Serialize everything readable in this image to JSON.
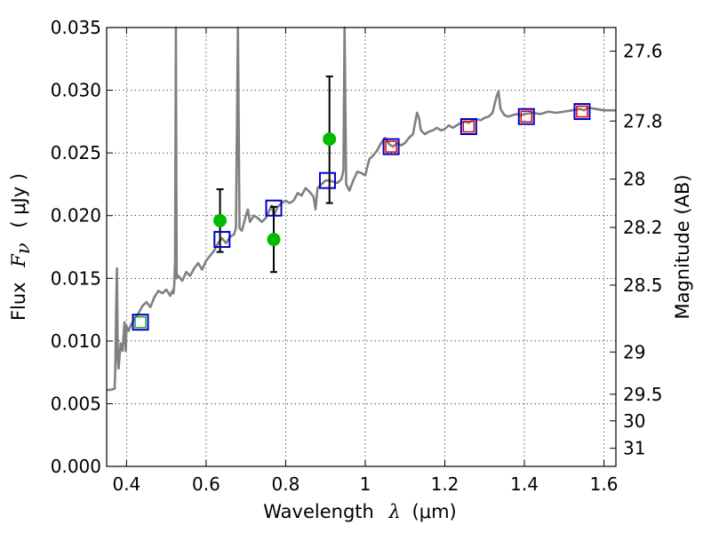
{
  "chart_data": {
    "type": "line",
    "xlabel": "Wavelength",
    "xlabel_symbol": "λ",
    "xlabel_unit": "(μm)",
    "ylabel": "Flux",
    "ylabel_symbol": "F",
    "ylabel_subscript": "ν",
    "ylabel_unit": "( μJy )",
    "y2label": "Magnitude (AB)",
    "xlim": [
      0.35,
      1.63
    ],
    "ylim": [
      0,
      0.035
    ],
    "grid": true,
    "xticks": [
      {
        "value": 0.4,
        "label": "0.4"
      },
      {
        "value": 0.6,
        "label": "0.6"
      },
      {
        "value": 0.8,
        "label": "0.8"
      },
      {
        "value": 1.0,
        "label": "1"
      },
      {
        "value": 1.2,
        "label": "1.2"
      },
      {
        "value": 1.4,
        "label": "1.4"
      },
      {
        "value": 1.6,
        "label": "1.6"
      }
    ],
    "yticks": [
      {
        "value": 0.0,
        "label": "0.000"
      },
      {
        "value": 0.005,
        "label": "0.005"
      },
      {
        "value": 0.01,
        "label": "0.010"
      },
      {
        "value": 0.015,
        "label": "0.015"
      },
      {
        "value": 0.02,
        "label": "0.020"
      },
      {
        "value": 0.025,
        "label": "0.025"
      },
      {
        "value": 0.03,
        "label": "0.030"
      },
      {
        "value": 0.035,
        "label": "0.035"
      }
    ],
    "y2ticks": [
      {
        "mag": 27.6,
        "label": "27.6"
      },
      {
        "mag": 27.8,
        "label": "27.8"
      },
      {
        "mag": 28.0,
        "label": "28"
      },
      {
        "mag": 28.2,
        "label": "28.2"
      },
      {
        "mag": 28.5,
        "label": "28.5"
      },
      {
        "mag": 29.0,
        "label": "29"
      },
      {
        "mag": 29.5,
        "label": "29.5"
      },
      {
        "mag": 30.0,
        "label": "30"
      },
      {
        "mag": 31.0,
        "label": "31"
      }
    ],
    "colors": {
      "model": "#808080",
      "observed": "#00bb00",
      "model_box": "#0000cc",
      "red_box": "#dd0000",
      "green_box": "#22aa22",
      "error": "#000000"
    },
    "model_spectrum": [
      [
        0.35,
        0.0061
      ],
      [
        0.36,
        0.0061
      ],
      [
        0.37,
        0.0062
      ],
      [
        0.372,
        0.008
      ],
      [
        0.374,
        0.0125
      ],
      [
        0.376,
        0.0158
      ],
      [
        0.378,
        0.0085
      ],
      [
        0.38,
        0.0078
      ],
      [
        0.385,
        0.0098
      ],
      [
        0.39,
        0.0092
      ],
      [
        0.392,
        0.0102
      ],
      [
        0.395,
        0.0115
      ],
      [
        0.398,
        0.0092
      ],
      [
        0.4,
        0.0112
      ],
      [
        0.405,
        0.0108
      ],
      [
        0.41,
        0.0112
      ],
      [
        0.42,
        0.0118
      ],
      [
        0.43,
        0.0122
      ],
      [
        0.44,
        0.0128
      ],
      [
        0.45,
        0.0131
      ],
      [
        0.46,
        0.0127
      ],
      [
        0.47,
        0.0135
      ],
      [
        0.48,
        0.014
      ],
      [
        0.49,
        0.0138
      ],
      [
        0.5,
        0.0141
      ],
      [
        0.51,
        0.0136
      ],
      [
        0.515,
        0.014
      ],
      [
        0.518,
        0.0138
      ],
      [
        0.52,
        0.0145
      ],
      [
        0.522,
        0.0165
      ],
      [
        0.524,
        0.035
      ],
      [
        0.526,
        0.015
      ],
      [
        0.53,
        0.0152
      ],
      [
        0.54,
        0.0148
      ],
      [
        0.55,
        0.0155
      ],
      [
        0.56,
        0.0152
      ],
      [
        0.57,
        0.0158
      ],
      [
        0.58,
        0.0162
      ],
      [
        0.59,
        0.0157
      ],
      [
        0.6,
        0.0164
      ],
      [
        0.61,
        0.0168
      ],
      [
        0.62,
        0.0172
      ],
      [
        0.63,
        0.0178
      ],
      [
        0.64,
        0.0182
      ],
      [
        0.65,
        0.0178
      ],
      [
        0.66,
        0.0183
      ],
      [
        0.67,
        0.0185
      ],
      [
        0.675,
        0.019
      ],
      [
        0.68,
        0.035
      ],
      [
        0.684,
        0.019
      ],
      [
        0.69,
        0.0188
      ],
      [
        0.7,
        0.02
      ],
      [
        0.705,
        0.0205
      ],
      [
        0.71,
        0.0195
      ],
      [
        0.72,
        0.02
      ],
      [
        0.73,
        0.0198
      ],
      [
        0.74,
        0.0195
      ],
      [
        0.75,
        0.0198
      ],
      [
        0.76,
        0.0205
      ],
      [
        0.765,
        0.0208
      ],
      [
        0.77,
        0.02
      ],
      [
        0.78,
        0.0207
      ],
      [
        0.79,
        0.021
      ],
      [
        0.8,
        0.0212
      ],
      [
        0.81,
        0.021
      ],
      [
        0.82,
        0.0212
      ],
      [
        0.83,
        0.0218
      ],
      [
        0.84,
        0.0216
      ],
      [
        0.85,
        0.0222
      ],
      [
        0.86,
        0.0219
      ],
      [
        0.87,
        0.0215
      ],
      [
        0.875,
        0.0205
      ],
      [
        0.88,
        0.0222
      ],
      [
        0.89,
        0.0225
      ],
      [
        0.9,
        0.0228
      ],
      [
        0.91,
        0.0228
      ],
      [
        0.92,
        0.0227
      ],
      [
        0.93,
        0.0226
      ],
      [
        0.94,
        0.0229
      ],
      [
        0.945,
        0.0236
      ],
      [
        0.948,
        0.035
      ],
      [
        0.952,
        0.0225
      ],
      [
        0.96,
        0.022
      ],
      [
        0.97,
        0.0228
      ],
      [
        0.98,
        0.0235
      ],
      [
        0.99,
        0.0234
      ],
      [
        1.0,
        0.0232
      ],
      [
        1.01,
        0.0245
      ],
      [
        1.02,
        0.0248
      ],
      [
        1.03,
        0.0252
      ],
      [
        1.04,
        0.0258
      ],
      [
        1.05,
        0.0262
      ],
      [
        1.06,
        0.0257
      ],
      [
        1.07,
        0.0255
      ],
      [
        1.08,
        0.0258
      ],
      [
        1.09,
        0.0256
      ],
      [
        1.1,
        0.0258
      ],
      [
        1.11,
        0.0262
      ],
      [
        1.12,
        0.0265
      ],
      [
        1.13,
        0.0282
      ],
      [
        1.135,
        0.0278
      ],
      [
        1.14,
        0.0268
      ],
      [
        1.15,
        0.0265
      ],
      [
        1.16,
        0.0267
      ],
      [
        1.17,
        0.0268
      ],
      [
        1.18,
        0.027
      ],
      [
        1.19,
        0.0268
      ],
      [
        1.2,
        0.0269
      ],
      [
        1.21,
        0.0272
      ],
      [
        1.22,
        0.027
      ],
      [
        1.23,
        0.0272
      ],
      [
        1.24,
        0.0274
      ],
      [
        1.25,
        0.0275
      ],
      [
        1.26,
        0.0274
      ],
      [
        1.27,
        0.0276
      ],
      [
        1.28,
        0.0277
      ],
      [
        1.29,
        0.0276
      ],
      [
        1.3,
        0.0278
      ],
      [
        1.31,
        0.0279
      ],
      [
        1.32,
        0.0282
      ],
      [
        1.33,
        0.0295
      ],
      [
        1.335,
        0.0299
      ],
      [
        1.34,
        0.0285
      ],
      [
        1.35,
        0.028
      ],
      [
        1.36,
        0.0279
      ],
      [
        1.37,
        0.028
      ],
      [
        1.38,
        0.0281
      ],
      [
        1.39,
        0.028
      ],
      [
        1.4,
        0.0281
      ],
      [
        1.42,
        0.0282
      ],
      [
        1.44,
        0.0281
      ],
      [
        1.46,
        0.0283
      ],
      [
        1.48,
        0.0282
      ],
      [
        1.5,
        0.0283
      ],
      [
        1.52,
        0.0284
      ],
      [
        1.54,
        0.0285
      ],
      [
        1.55,
        0.0284
      ],
      [
        1.56,
        0.0286
      ],
      [
        1.58,
        0.0285
      ],
      [
        1.6,
        0.0284
      ],
      [
        1.63,
        0.0284
      ]
    ],
    "model_points": [
      {
        "x": 0.435,
        "y": 0.0115,
        "inner": "green"
      },
      {
        "x": 0.64,
        "y": 0.0181
      },
      {
        "x": 0.77,
        "y": 0.0206
      },
      {
        "x": 0.905,
        "y": 0.0228
      },
      {
        "x": 1.065,
        "y": 0.0255,
        "inner": "red"
      },
      {
        "x": 1.26,
        "y": 0.0271,
        "inner": "red"
      },
      {
        "x": 1.405,
        "y": 0.0279,
        "inner": "red"
      },
      {
        "x": 1.545,
        "y": 0.0283,
        "inner": "red"
      }
    ],
    "observed_points": [
      {
        "x": 0.635,
        "y": 0.0196,
        "yerr_low": 0.0171,
        "yerr_high": 0.0221
      },
      {
        "x": 0.77,
        "y": 0.0181,
        "yerr_low": 0.0155,
        "yerr_high": 0.0207
      },
      {
        "x": 0.91,
        "y": 0.0261,
        "yerr_low": 0.021,
        "yerr_high": 0.0311
      }
    ]
  }
}
